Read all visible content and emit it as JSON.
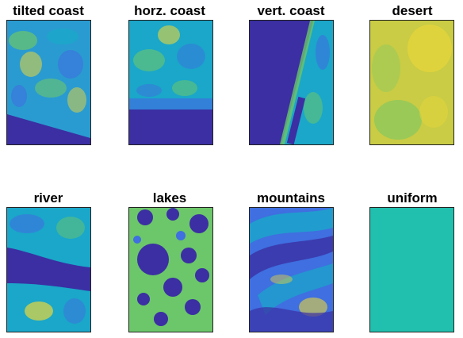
{
  "panels": [
    {
      "title": "tilted coast"
    },
    {
      "title": "horz. coast"
    },
    {
      "title": "vert. coast"
    },
    {
      "title": "desert"
    },
    {
      "title": "river"
    },
    {
      "title": "lakes"
    },
    {
      "title": "mountains"
    },
    {
      "title": "uniform"
    }
  ],
  "colors": {
    "deep_blue": "#3b2fa3",
    "blue": "#3f6fe0",
    "cyan": "#1aa7c9",
    "teal": "#21bfae",
    "green": "#6cc66a",
    "yellow": "#e8d53a",
    "uniform": "#21bfae"
  }
}
